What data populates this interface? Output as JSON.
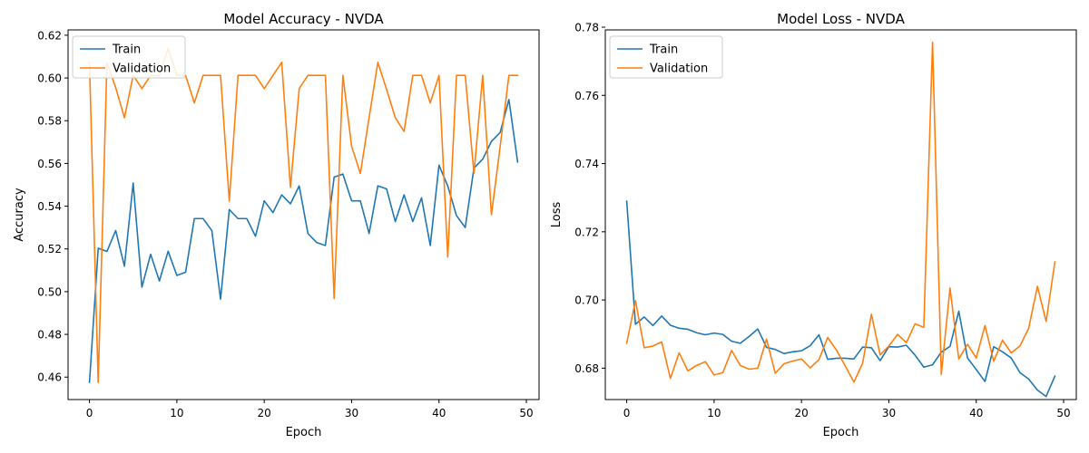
{
  "chart_data": [
    {
      "type": "line",
      "title": "Model Accuracy - NVDA",
      "xlabel": "Epoch",
      "ylabel": "Accuracy",
      "xlim": [
        -2.45,
        51.45
      ],
      "ylim": [
        0.4495,
        0.6225
      ],
      "xticks": [
        0,
        10,
        20,
        30,
        40,
        50
      ],
      "yticks": [
        0.46,
        0.48,
        0.5,
        0.52,
        0.54,
        0.56,
        0.58,
        0.6,
        0.62
      ],
      "ytick_labels": [
        "0.46",
        "0.48",
        "0.50",
        "0.52",
        "0.54",
        "0.56",
        "0.58",
        "0.60",
        "0.62"
      ],
      "legend_position": "upper-left",
      "grid": false,
      "series": [
        {
          "name": "Train",
          "color": "#1f77b4",
          "x": [
            0,
            1,
            2,
            3,
            4,
            5,
            6,
            7,
            8,
            9,
            10,
            11,
            12,
            13,
            14,
            15,
            16,
            17,
            18,
            19,
            20,
            21,
            22,
            23,
            24,
            25,
            26,
            27,
            28,
            29,
            30,
            31,
            32,
            33,
            34,
            35,
            36,
            37,
            38,
            39,
            40,
            41,
            42,
            43,
            44,
            45,
            46,
            47,
            48,
            49
          ],
          "values": [
            0.4575,
            0.5203,
            0.5188,
            0.5286,
            0.5119,
            0.5508,
            0.5021,
            0.5175,
            0.505,
            0.5189,
            0.5076,
            0.5091,
            0.5342,
            0.5342,
            0.5286,
            0.4965,
            0.5384,
            0.5342,
            0.5342,
            0.5259,
            0.5425,
            0.537,
            0.5453,
            0.5411,
            0.5495,
            0.5272,
            0.523,
            0.5216,
            0.5536,
            0.555,
            0.5425,
            0.5425,
            0.5272,
            0.5495,
            0.5481,
            0.5328,
            0.5453,
            0.5328,
            0.5439,
            0.5216,
            0.5592,
            0.5495,
            0.5356,
            0.53,
            0.5578,
            0.562,
            0.5703,
            0.5745,
            0.5899,
            0.5606
          ]
        },
        {
          "name": "Validation",
          "color": "#ff7f0e",
          "x": [
            0,
            1,
            2,
            3,
            4,
            5,
            6,
            7,
            8,
            9,
            10,
            11,
            12,
            13,
            14,
            15,
            16,
            17,
            18,
            19,
            20,
            21,
            22,
            23,
            24,
            25,
            26,
            27,
            28,
            29,
            30,
            31,
            32,
            33,
            34,
            35,
            36,
            37,
            38,
            39,
            40,
            41,
            42,
            43,
            44,
            45,
            46,
            47,
            48,
            49
          ],
          "values": [
            0.6073,
            0.4575,
            0.6073,
            0.5955,
            0.5814,
            0.6012,
            0.595,
            0.6012,
            0.6012,
            0.6139,
            0.6012,
            0.6012,
            0.5883,
            0.6012,
            0.6012,
            0.6012,
            0.5424,
            0.6012,
            0.6012,
            0.6012,
            0.595,
            0.6012,
            0.6073,
            0.5488,
            0.595,
            0.6012,
            0.6012,
            0.6012,
            0.4968,
            0.6012,
            0.568,
            0.5553,
            0.5814,
            0.6073,
            0.5946,
            0.5814,
            0.575,
            0.6012,
            0.6012,
            0.5883,
            0.6012,
            0.5162,
            0.6012,
            0.6012,
            0.5553,
            0.6012,
            0.536,
            0.568,
            0.6012,
            0.6012
          ]
        }
      ]
    },
    {
      "type": "line",
      "title": "Model Loss - NVDA",
      "xlabel": "Epoch",
      "ylabel": "Loss",
      "xlim": [
        -2.45,
        51.45
      ],
      "ylim": [
        0.6708,
        0.7792
      ],
      "xticks": [
        0,
        10,
        20,
        30,
        40,
        50
      ],
      "yticks": [
        0.68,
        0.7,
        0.72,
        0.74,
        0.76,
        0.78
      ],
      "ytick_labels": [
        "0.68",
        "0.70",
        "0.72",
        "0.74",
        "0.76",
        "0.78"
      ],
      "legend_position": "upper-left",
      "grid": false,
      "series": [
        {
          "name": "Train",
          "color": "#1f77b4",
          "x": [
            0,
            1,
            2,
            3,
            4,
            5,
            6,
            7,
            8,
            9,
            10,
            11,
            12,
            13,
            14,
            15,
            16,
            17,
            18,
            19,
            20,
            21,
            22,
            23,
            24,
            25,
            26,
            27,
            28,
            29,
            30,
            31,
            32,
            33,
            34,
            35,
            36,
            37,
            38,
            39,
            40,
            41,
            42,
            43,
            44,
            45,
            46,
            47,
            48,
            49
          ],
          "values": [
            0.729,
            0.6929,
            0.695,
            0.6925,
            0.6953,
            0.6926,
            0.6917,
            0.6914,
            0.6904,
            0.6898,
            0.6903,
            0.6899,
            0.6879,
            0.6873,
            0.6893,
            0.6915,
            0.6861,
            0.6855,
            0.6843,
            0.6848,
            0.6851,
            0.6866,
            0.6898,
            0.6826,
            0.6829,
            0.6829,
            0.6827,
            0.6862,
            0.686,
            0.6822,
            0.6863,
            0.6862,
            0.6867,
            0.6838,
            0.6803,
            0.681,
            0.6847,
            0.6864,
            0.6967,
            0.683,
            0.6796,
            0.6761,
            0.6863,
            0.6848,
            0.683,
            0.6787,
            0.6768,
            0.6736,
            0.6717,
            0.6777
          ]
        },
        {
          "name": "Validation",
          "color": "#ff7f0e",
          "x": [
            0,
            1,
            2,
            3,
            4,
            5,
            6,
            7,
            8,
            9,
            10,
            11,
            12,
            13,
            14,
            15,
            16,
            17,
            18,
            19,
            20,
            21,
            22,
            23,
            24,
            25,
            26,
            27,
            28,
            29,
            30,
            31,
            32,
            33,
            34,
            35,
            36,
            37,
            38,
            39,
            40,
            41,
            42,
            43,
            44,
            45,
            46,
            47,
            48,
            49
          ],
          "values": [
            0.6873,
            0.6998,
            0.686,
            0.6865,
            0.6877,
            0.677,
            0.6845,
            0.6792,
            0.6808,
            0.6819,
            0.678,
            0.6787,
            0.6852,
            0.6808,
            0.6797,
            0.68,
            0.6885,
            0.6785,
            0.6813,
            0.6821,
            0.6827,
            0.6801,
            0.6825,
            0.689,
            0.6853,
            0.6807,
            0.6759,
            0.6815,
            0.6958,
            0.6839,
            0.6865,
            0.6899,
            0.6875,
            0.693,
            0.692,
            0.7756,
            0.6782,
            0.7035,
            0.6827,
            0.687,
            0.683,
            0.6925,
            0.682,
            0.6882,
            0.6845,
            0.6865,
            0.6917,
            0.704,
            0.6937,
            0.7112
          ]
        }
      ]
    }
  ]
}
